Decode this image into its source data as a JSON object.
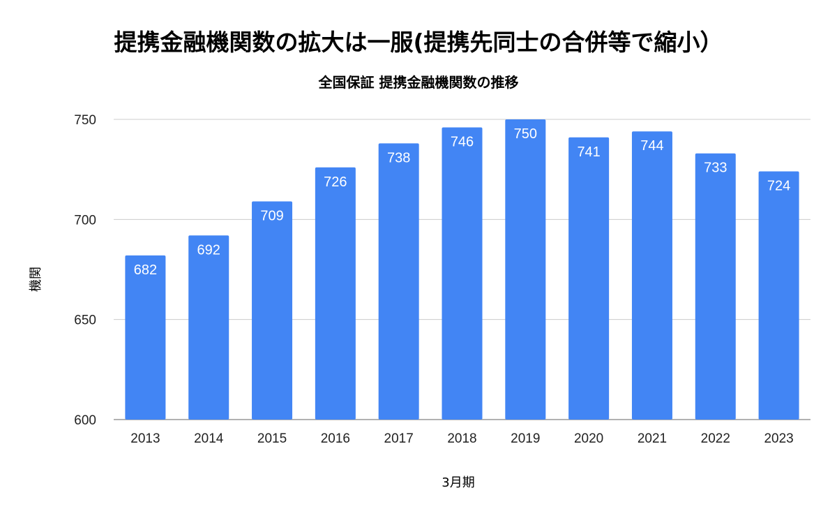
{
  "chart_data": {
    "type": "bar",
    "title": "提携金融機関数の拡大は一服(提携先同士の合併等で縮小）",
    "subtitle": "全国保証 提携金融機関数の推移",
    "xlabel": "3月期",
    "ylabel": "機関",
    "categories": [
      "2013",
      "2014",
      "2015",
      "2016",
      "2017",
      "2018",
      "2019",
      "2020",
      "2021",
      "2022",
      "2023"
    ],
    "values": [
      682,
      692,
      709,
      726,
      738,
      746,
      750,
      741,
      744,
      733,
      724
    ],
    "ylim": [
      600,
      750
    ],
    "yticks": [
      600,
      650,
      700,
      750
    ],
    "grid": true,
    "bar_color": "#4285F4",
    "grid_color": "#cccccc",
    "label_color": "#ffffff"
  }
}
